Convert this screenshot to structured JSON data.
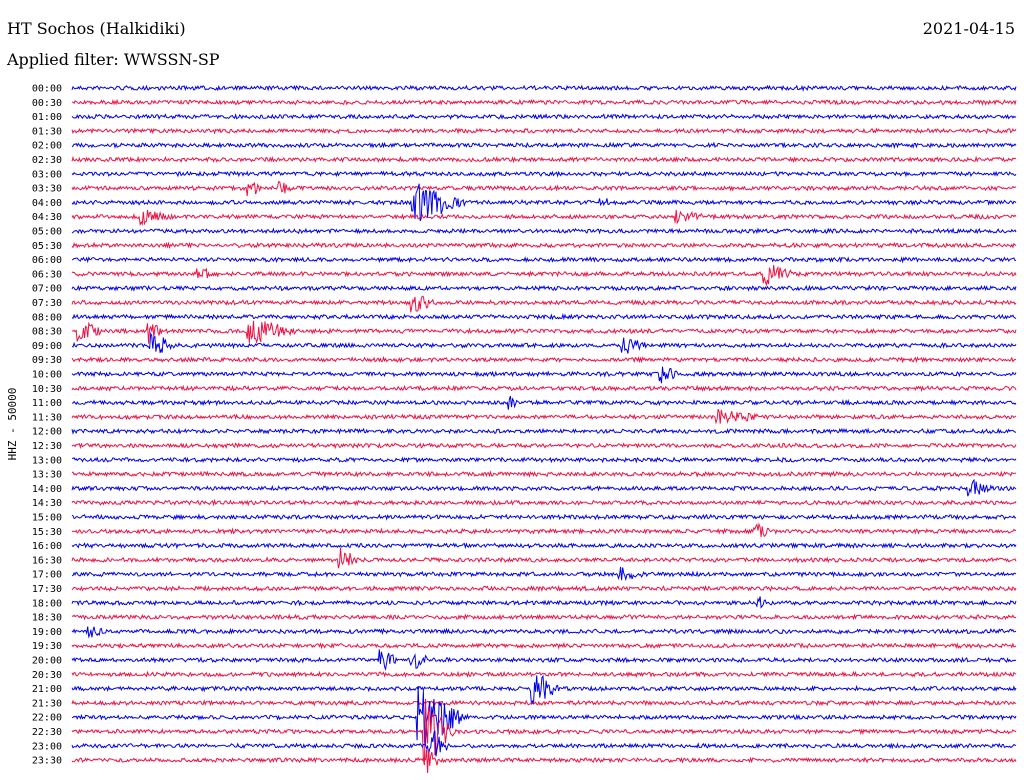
{
  "header": {
    "station": "HT Sochos (Halkidiki)",
    "date": "2021-04-15",
    "filter": "Applied filter: WWSSN-SP"
  },
  "chart_data": {
    "type": "line",
    "ylabel": "HHZ - 50000",
    "row_labels": [
      "00:00",
      "00:30",
      "01:00",
      "01:30",
      "02:00",
      "02:30",
      "03:00",
      "03:30",
      "04:00",
      "04:30",
      "05:00",
      "05:30",
      "06:00",
      "06:30",
      "07:00",
      "07:30",
      "08:00",
      "08:30",
      "09:00",
      "09:30",
      "10:00",
      "10:30",
      "11:00",
      "11:30",
      "12:00",
      "12:30",
      "13:00",
      "13:30",
      "14:00",
      "14:30",
      "15:00",
      "15:30",
      "16:00",
      "16:30",
      "17:00",
      "17:30",
      "18:00",
      "18:30",
      "19:00",
      "19:30",
      "20:00",
      "20:30",
      "21:00",
      "21:30",
      "22:00",
      "22:30",
      "23:00",
      "23:30"
    ],
    "row_minutes": 30,
    "colors": [
      "#0000ee",
      "#ee1144"
    ],
    "events": [
      {
        "row": 7,
        "minute": 5.6,
        "amp": 10,
        "dur": 0.4
      },
      {
        "row": 7,
        "minute": 6.6,
        "amp": 6,
        "dur": 0.4
      },
      {
        "row": 8,
        "minute": 10.8,
        "amp": 20,
        "dur": 1.8
      },
      {
        "row": 8,
        "minute": 16.8,
        "amp": 6,
        "dur": 0.3
      },
      {
        "row": 9,
        "minute": 2.2,
        "amp": 6,
        "dur": 1.0
      },
      {
        "row": 9,
        "minute": 19.2,
        "amp": 5,
        "dur": 1.0
      },
      {
        "row": 13,
        "minute": 4.0,
        "amp": 10,
        "dur": 0.4
      },
      {
        "row": 13,
        "minute": 22.0,
        "amp": 10,
        "dur": 1.0
      },
      {
        "row": 15,
        "minute": 10.8,
        "amp": 10,
        "dur": 0.8
      },
      {
        "row": 17,
        "minute": 0.2,
        "amp": 10,
        "dur": 0.8
      },
      {
        "row": 17,
        "minute": 2.4,
        "amp": 14,
        "dur": 0.5
      },
      {
        "row": 17,
        "minute": 5.6,
        "amp": 12,
        "dur": 1.6
      },
      {
        "row": 18,
        "minute": 2.5,
        "amp": 12,
        "dur": 0.8
      },
      {
        "row": 18,
        "minute": 17.5,
        "amp": 8,
        "dur": 0.8
      },
      {
        "row": 20,
        "minute": 18.7,
        "amp": 8,
        "dur": 0.6
      },
      {
        "row": 22,
        "minute": 13.9,
        "amp": 8,
        "dur": 0.3
      },
      {
        "row": 23,
        "minute": 20.5,
        "amp": 6,
        "dur": 1.5
      },
      {
        "row": 28,
        "minute": 28.5,
        "amp": 8,
        "dur": 0.8
      },
      {
        "row": 31,
        "minute": 21.7,
        "amp": 8,
        "dur": 0.5
      },
      {
        "row": 33,
        "minute": 8.5,
        "amp": 12,
        "dur": 0.6
      },
      {
        "row": 34,
        "minute": 17.4,
        "amp": 6,
        "dur": 0.8
      },
      {
        "row": 36,
        "minute": 21.8,
        "amp": 6,
        "dur": 0.4
      },
      {
        "row": 38,
        "minute": 0.5,
        "amp": 6,
        "dur": 0.5
      },
      {
        "row": 40,
        "minute": 9.8,
        "amp": 10,
        "dur": 0.6
      },
      {
        "row": 40,
        "minute": 10.8,
        "amp": 10,
        "dur": 0.6
      },
      {
        "row": 42,
        "minute": 14.6,
        "amp": 18,
        "dur": 0.9
      },
      {
        "row": 44,
        "minute": 11.0,
        "amp": 30,
        "dur": 1.6
      },
      {
        "row": 45,
        "minute": 11.2,
        "amp": 34,
        "dur": 1.0
      },
      {
        "row": 46,
        "minute": 11.3,
        "amp": 20,
        "dur": 0.7
      },
      {
        "row": 47,
        "minute": 11.3,
        "amp": 14,
        "dur": 0.4
      }
    ]
  }
}
